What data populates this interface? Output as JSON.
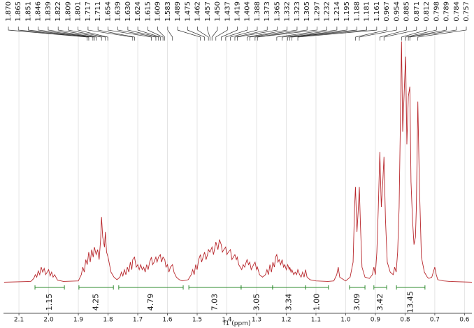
{
  "chart_data": {
    "type": "line",
    "xlabel": "f1 (ppm)",
    "xlim": [
      2.152,
      0.575
    ],
    "ylim": [
      -6,
      100
    ],
    "grid": true,
    "color": "#b8262b",
    "xticks": [
      2.1,
      {
        "value": 2,
        "label": "2.0"
      },
      1.9,
      1.8,
      1.7,
      1.6,
      1.5,
      1.4,
      1.3,
      1.2,
      1.1,
      {
        "value": 1,
        "label": "1.0"
      },
      0.9,
      0.8,
      0.7,
      0.6
    ],
    "peak_labels": [
      {
        "value": 1.87,
        "label": "1.870"
      },
      1.865,
      1.851,
      1.846,
      1.839,
      1.822,
      1.809,
      1.801,
      1.717,
      1.711,
      1.654,
      1.639,
      {
        "value": 1.63,
        "label": "1.630"
      },
      1.624,
      1.615,
      1.609,
      1.583,
      1.489,
      1.475,
      1.462,
      1.457,
      {
        "value": 1.45,
        "label": "1.450"
      },
      1.437,
      1.419,
      1.404,
      1.388,
      1.373,
      1.365,
      1.332,
      1.323,
      1.305,
      1.297,
      1.232,
      1.214,
      1.195,
      1.188,
      1.181,
      1.161,
      0.967,
      0.954,
      0.885,
      0.871,
      0.812,
      0.798,
      0.789,
      0.784,
      0.757
    ],
    "integral_color": "#2e8b2e",
    "integrals": [
      {
        "range": [
          2.046,
          1.947
        ],
        "value": 1.15
      },
      {
        "range": [
          1.898,
          1.782
        ],
        "value": 4.25
      },
      {
        "range": [
          1.764,
          1.547
        ],
        "value": 4.79
      },
      {
        "range": [
          1.528,
          1.352
        ],
        "value": 7.03
      },
      {
        "range": [
          1.352,
          1.246
        ],
        "value": 3.05
      },
      {
        "range": [
          1.246,
          1.135
        ],
        "value": 3.34
      },
      {
        "range": [
          1.135,
          1.058
        ],
        "value": 1,
        "value_label": "1.00"
      },
      {
        "range": [
          0.987,
          0.935
        ],
        "value": 3.09
      },
      {
        "range": [
          0.905,
          0.862
        ],
        "value": 3.42
      },
      {
        "range": [
          0.829,
          0.733
        ],
        "value": 13.45
      }
    ],
    "x": [
      2.15,
      2.06,
      2.05,
      2.045,
      2.04,
      2.035,
      2.03,
      2.025,
      2.02,
      2.015,
      2.01,
      2.0,
      1.995,
      1.99,
      1.985,
      1.98,
      1.97,
      1.95,
      1.9,
      1.89,
      1.885,
      1.88,
      1.875,
      1.87,
      1.865,
      1.86,
      1.855,
      1.85,
      1.846,
      1.84,
      1.835,
      1.83,
      1.825,
      1.822,
      1.818,
      1.812,
      1.809,
      1.805,
      1.8,
      1.795,
      1.79,
      1.78,
      1.77,
      1.76,
      1.755,
      1.75,
      1.745,
      1.74,
      1.735,
      1.73,
      1.725,
      1.72,
      1.717,
      1.711,
      1.705,
      1.7,
      1.695,
      1.69,
      1.685,
      1.68,
      1.675,
      1.67,
      1.665,
      1.66,
      1.654,
      1.65,
      1.645,
      1.639,
      1.635,
      1.63,
      1.624,
      1.62,
      1.615,
      1.609,
      1.605,
      1.6,
      1.595,
      1.59,
      1.583,
      1.578,
      1.57,
      1.56,
      1.55,
      1.53,
      1.52,
      1.515,
      1.51,
      1.505,
      1.5,
      1.495,
      1.489,
      1.485,
      1.48,
      1.475,
      1.47,
      1.465,
      1.462,
      1.457,
      1.45,
      1.445,
      1.44,
      1.437,
      1.43,
      1.425,
      1.419,
      1.415,
      1.41,
      1.404,
      1.4,
      1.395,
      1.388,
      1.383,
      1.378,
      1.373,
      1.368,
      1.365,
      1.36,
      1.355,
      1.35,
      1.345,
      1.34,
      1.335,
      1.332,
      1.327,
      1.323,
      1.318,
      1.31,
      1.305,
      1.3,
      1.297,
      1.29,
      1.28,
      1.27,
      1.265,
      1.26,
      1.255,
      1.25,
      1.245,
      1.24,
      1.236,
      1.232,
      1.228,
      1.224,
      1.219,
      1.214,
      1.209,
      1.205,
      1.2,
      1.195,
      1.19,
      1.188,
      1.184,
      1.181,
      1.175,
      1.17,
      1.165,
      1.161,
      1.155,
      1.15,
      1.145,
      1.14,
      1.135,
      1.13,
      1.12,
      1.1,
      1.06,
      1.04,
      1.03,
      1.025,
      1.02,
      1.0,
      0.985,
      0.975,
      0.97,
      0.967,
      0.962,
      0.958,
      0.954,
      0.95,
      0.945,
      0.935,
      0.92,
      0.91,
      0.905,
      0.9,
      0.895,
      0.89,
      0.885,
      0.88,
      0.875,
      0.871,
      0.866,
      0.86,
      0.85,
      0.84,
      0.835,
      0.83,
      0.825,
      0.82,
      0.815,
      0.812,
      0.808,
      0.8,
      0.798,
      0.794,
      0.789,
      0.784,
      0.78,
      0.775,
      0.77,
      0.765,
      0.762,
      0.757,
      0.752,
      0.745,
      0.735,
      0.725,
      0.72,
      0.71,
      0.705,
      0.7,
      0.695,
      0.69,
      0.67,
      0.65,
      0.575
    ],
    "values": [
      0,
      0.3,
      1.5,
      3,
      2,
      4.5,
      3,
      6,
      4,
      5.5,
      3,
      5,
      2.5,
      4,
      2,
      3,
      0.8,
      0.3,
      0.5,
      3,
      6,
      4,
      9,
      7,
      12,
      8,
      13,
      10,
      14,
      11,
      13,
      9,
      17,
      26,
      18,
      14,
      20,
      12,
      10,
      7,
      4,
      2,
      1,
      2,
      4,
      2.5,
      5,
      3,
      6,
      4,
      8,
      5,
      9,
      10,
      6,
      7,
      5,
      7,
      5,
      6,
      4,
      7,
      5,
      8,
      10,
      7,
      8,
      10,
      8,
      10,
      11,
      8,
      10,
      9,
      6,
      7,
      4,
      6,
      7,
      4,
      2,
      1,
      0.5,
      1,
      3,
      5,
      3,
      7,
      5,
      9,
      11,
      8,
      10,
      12,
      9,
      11,
      13,
      12,
      14,
      11,
      14,
      16,
      13,
      17,
      15,
      12,
      13,
      14,
      11,
      12,
      13,
      9,
      10,
      11,
      9,
      10,
      7,
      6,
      5,
      7,
      6,
      8,
      9,
      7,
      8,
      5,
      7,
      8,
      5,
      6,
      3,
      2,
      3,
      5,
      3,
      7,
      4,
      8,
      6,
      10,
      11,
      8,
      9,
      7,
      9,
      6,
      7,
      5,
      7,
      5,
      6,
      4,
      5,
      3,
      4,
      3,
      5,
      3,
      2,
      4,
      2,
      5,
      2,
      1,
      0.5,
      0.3,
      0.5,
      3,
      6,
      2,
      0.5,
      2,
      8,
      30,
      38,
      20,
      28,
      38,
      22,
      6,
      2,
      1.5,
      3,
      6,
      3,
      12,
      30,
      52,
      30,
      40,
      50,
      25,
      8,
      4,
      3,
      6,
      4,
      12,
      30,
      70,
      96,
      60,
      85,
      90,
      55,
      74,
      78,
      40,
      25,
      15,
      18,
      30,
      72,
      40,
      10,
      4,
      2,
      1.5,
      2,
      4,
      6,
      3,
      1,
      0.5,
      0.3,
      0
    ]
  }
}
